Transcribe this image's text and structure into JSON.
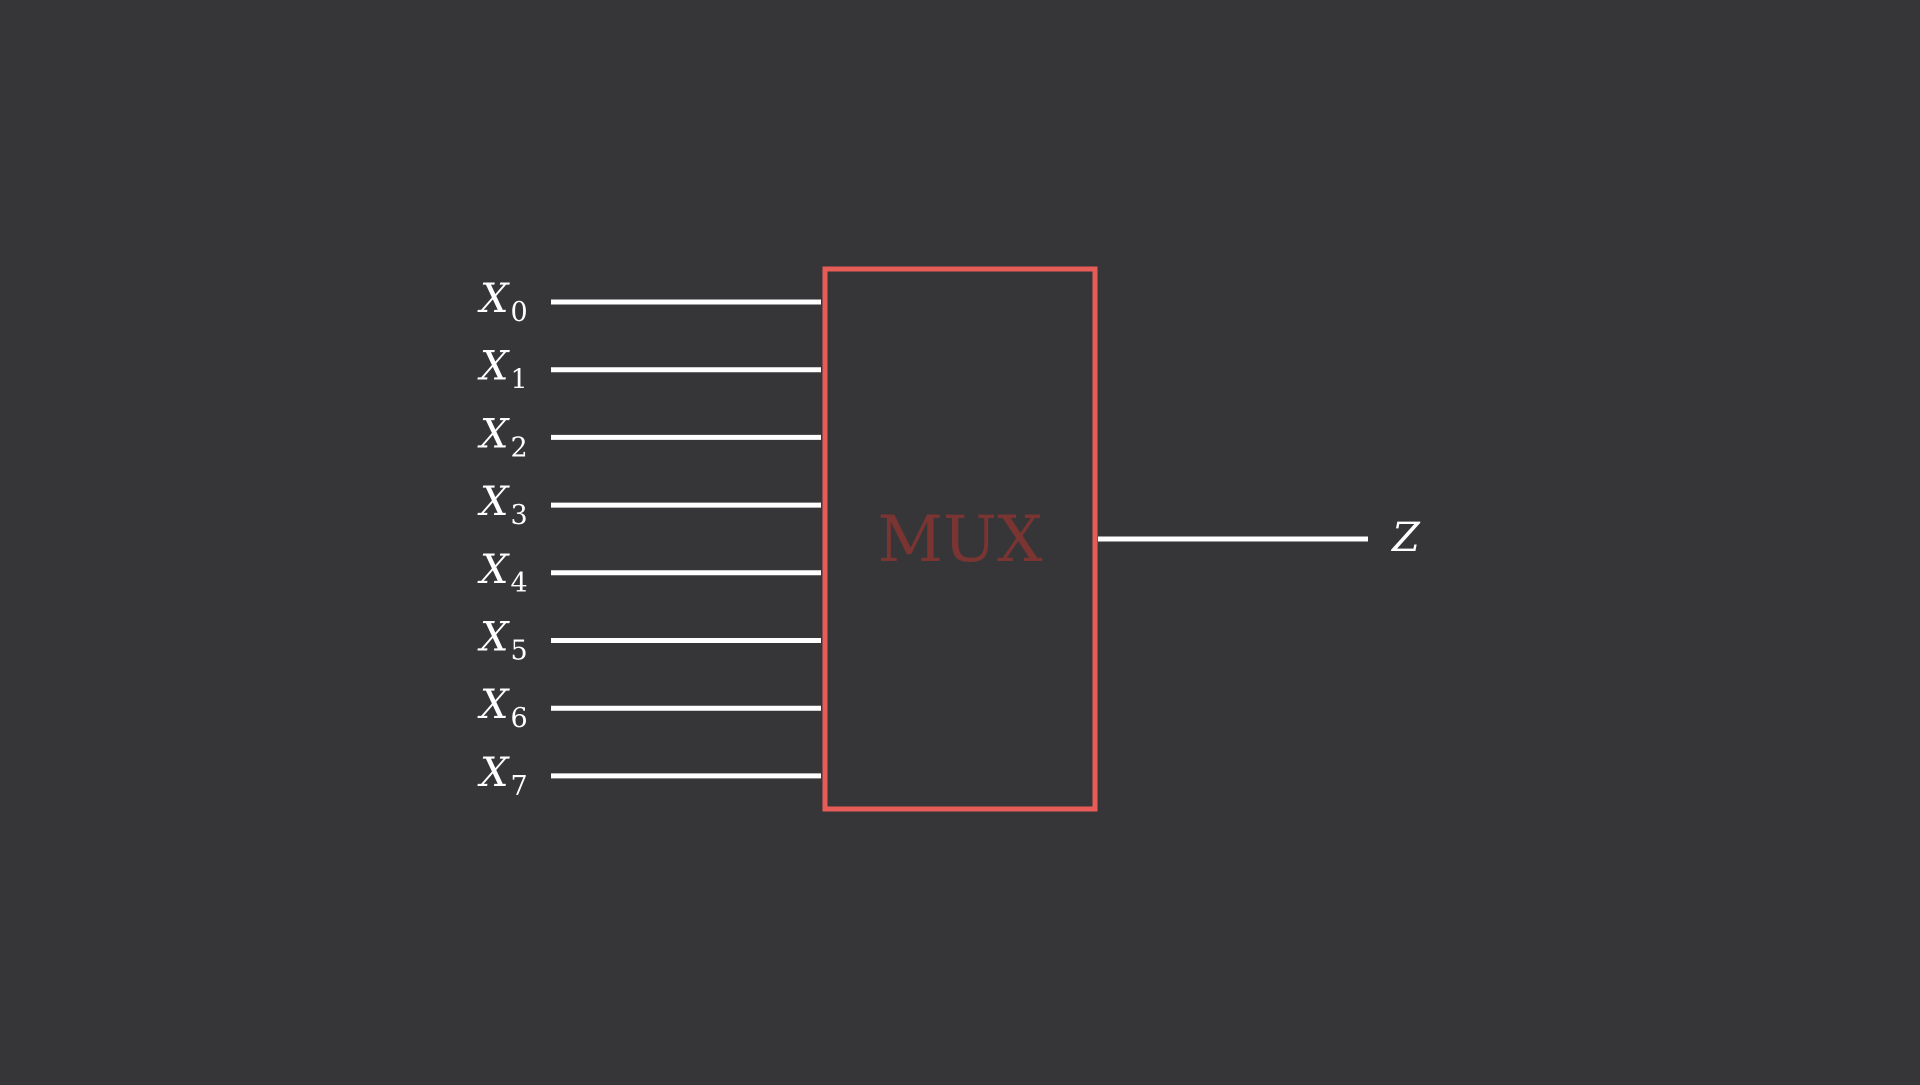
{
  "colors": {
    "background": "#363638",
    "mux_border": "#e85c58",
    "mux_label": "#7a3432",
    "wire": "#ffffff",
    "label": "#ffffff"
  },
  "mux": {
    "label": "MUX"
  },
  "inputs": [
    {
      "base": "X",
      "sub": "0"
    },
    {
      "base": "X",
      "sub": "1"
    },
    {
      "base": "X",
      "sub": "2"
    },
    {
      "base": "X",
      "sub": "3"
    },
    {
      "base": "X",
      "sub": "4"
    },
    {
      "base": "X",
      "sub": "5"
    },
    {
      "base": "X",
      "sub": "6"
    },
    {
      "base": "X",
      "sub": "7"
    }
  ],
  "output": {
    "label": "Z"
  }
}
